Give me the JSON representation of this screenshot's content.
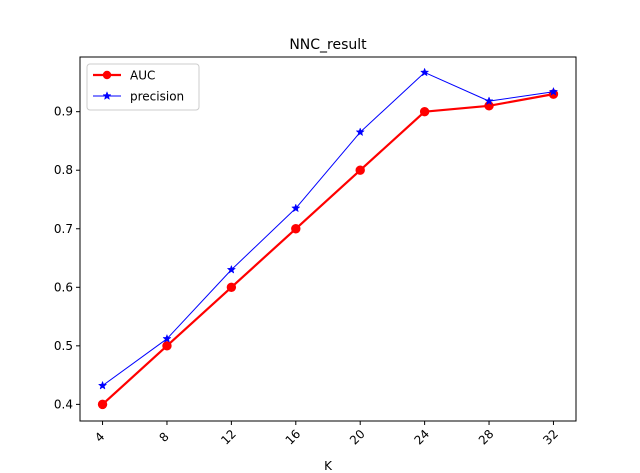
{
  "chart_data": {
    "type": "line",
    "title": "NNC_result",
    "xlabel": "K",
    "ylabel": "",
    "x": [
      4,
      8,
      12,
      16,
      20,
      24,
      28,
      32
    ],
    "xlim": [
      2.6,
      33.4
    ],
    "ylim": [
      0.3716,
      0.9934
    ],
    "yticks": [
      0.4,
      0.5,
      0.6,
      0.7,
      0.8,
      0.9
    ],
    "grid": false,
    "legend_position": "upper left",
    "series": [
      {
        "name": "AUC",
        "values": [
          0.4,
          0.5,
          0.6,
          0.7,
          0.8,
          0.9,
          0.91,
          0.93
        ],
        "color": "#ff0000",
        "marker": "circle"
      },
      {
        "name": "precision",
        "values": [
          0.432,
          0.512,
          0.63,
          0.735,
          0.865,
          0.967,
          0.918,
          0.934
        ],
        "color": "#0000ff",
        "marker": "star"
      }
    ]
  }
}
